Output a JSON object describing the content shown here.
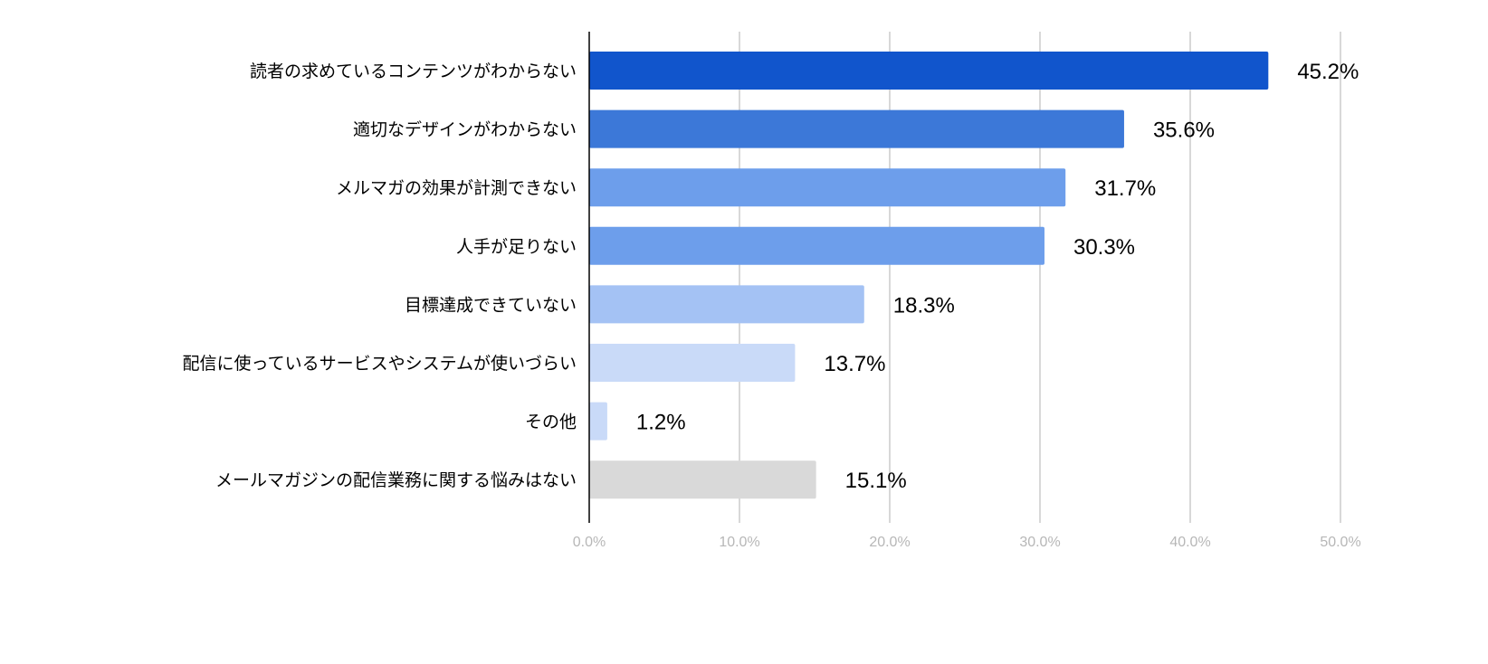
{
  "chart_data": {
    "type": "bar",
    "orientation": "horizontal",
    "title": "",
    "xlabel": "",
    "ylabel": "",
    "categories": [
      "読者の求めているコンテンツがわからない",
      "適切なデザインがわからない",
      "メルマガの効果が計測できない",
      "人手が足りない",
      "目標達成できていない",
      "配信に使っているサービスやシステムが使いづらい",
      "その他",
      "メールマガジンの配信業務に関する悩みはない"
    ],
    "values": [
      45.2,
      35.6,
      31.7,
      30.3,
      18.3,
      13.7,
      1.2,
      15.1
    ],
    "value_labels": [
      "45.2%",
      "35.6%",
      "31.7%",
      "30.3%",
      "18.3%",
      "13.7%",
      "1.2%",
      "15.1%"
    ],
    "colors": [
      "#1155cc",
      "#3c78d8",
      "#6d9eeb",
      "#6d9eeb",
      "#a4c2f4",
      "#c9daf8",
      "#c9daf8",
      "#d9d9d9"
    ],
    "xlim": [
      0,
      50
    ],
    "xticks": [
      0,
      10,
      20,
      30,
      40,
      50
    ],
    "xtick_labels": [
      "0.0%",
      "10.0%",
      "20.0%",
      "30.0%",
      "40.0%",
      "50.0%"
    ],
    "grid": true,
    "legend": "none"
  }
}
